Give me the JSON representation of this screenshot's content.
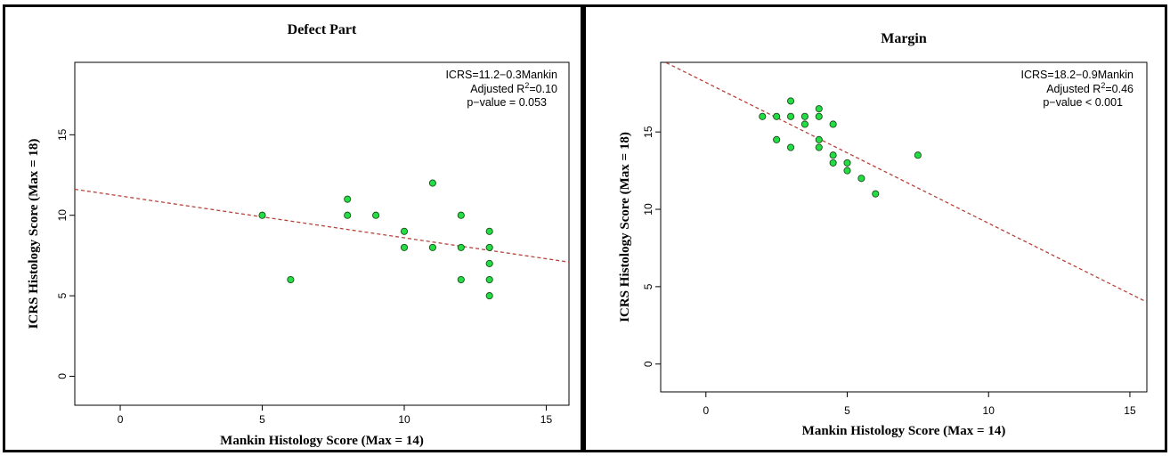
{
  "chart_data": [
    {
      "type": "scatter",
      "title": "Defect Part",
      "xlabel": "Mankin Histology Score (Max = 14)",
      "ylabel": "ICRS Histology Score (Max = 18)",
      "xlim": [
        -1.6,
        15.8
      ],
      "ylim": [
        -1.8,
        19.5
      ],
      "xticks": [
        "0",
        "5",
        "10",
        "15"
      ],
      "yticks": [
        "0",
        "5",
        "10",
        "15"
      ],
      "annotation": [
        "ICRS=11.2−0.3Mankin",
        "Adjusted R",
        "2",
        "=0.10",
        "p−value = 0.053"
      ],
      "regression": {
        "intercept": 11.2,
        "slope": -0.26
      },
      "points": [
        [
          5,
          10
        ],
        [
          6,
          6
        ],
        [
          8,
          11
        ],
        [
          8,
          10
        ],
        [
          9,
          10
        ],
        [
          10,
          9
        ],
        [
          10,
          8
        ],
        [
          11,
          12
        ],
        [
          11,
          8
        ],
        [
          12,
          10
        ],
        [
          12,
          8
        ],
        [
          12,
          6
        ],
        [
          13,
          9
        ],
        [
          13,
          8
        ],
        [
          13,
          7
        ],
        [
          13,
          6
        ],
        [
          13,
          5
        ]
      ],
      "point_color": "#22dd44",
      "line_color": "#b5443a",
      "grid": false
    },
    {
      "type": "scatter",
      "title": "Margin",
      "xlabel": "Mankin Histology Score (Max = 14)",
      "ylabel": "ICRS Histology Score (Max = 18)",
      "xlim": [
        -1.6,
        15.6
      ],
      "ylim": [
        -1.8,
        19.5
      ],
      "xticks": [
        "0",
        "5",
        "10",
        "15"
      ],
      "yticks": [
        "0",
        "5",
        "10",
        "15"
      ],
      "annotation": [
        "ICRS=18.2−0.9Mankin",
        "Adjusted R",
        "2",
        "=0.46",
        "p−value < 0.001"
      ],
      "regression": {
        "intercept": 18.2,
        "slope": -0.91
      },
      "points": [
        [
          2,
          16
        ],
        [
          2.5,
          16
        ],
        [
          2.5,
          14.5
        ],
        [
          3,
          17
        ],
        [
          3,
          16
        ],
        [
          3,
          14
        ],
        [
          3.5,
          16
        ],
        [
          3.5,
          15.5
        ],
        [
          4,
          16.5
        ],
        [
          4,
          16
        ],
        [
          4,
          14.5
        ],
        [
          4,
          14
        ],
        [
          4.5,
          15.5
        ],
        [
          4.5,
          13.5
        ],
        [
          4.5,
          13
        ],
        [
          5,
          13
        ],
        [
          5,
          12.5
        ],
        [
          5.5,
          12
        ],
        [
          6,
          11
        ],
        [
          7.5,
          13.5
        ]
      ],
      "point_color": "#22dd44",
      "line_color": "#b5443a",
      "grid": false
    }
  ]
}
